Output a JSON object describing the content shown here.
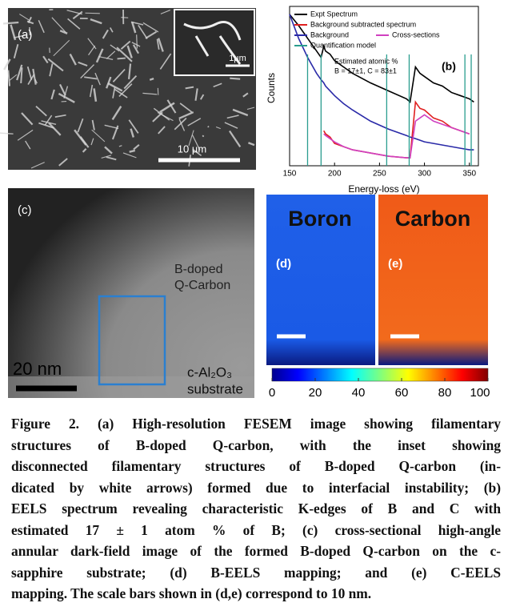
{
  "panel_a": {
    "label": "(a)",
    "inset_scale": "1µm",
    "scale": "10 µm"
  },
  "chart_data": {
    "type": "line",
    "label": "(b)",
    "x_label": "Energy-loss (eV)",
    "y_label": "Counts",
    "annotations": [
      "Estimated atomic %",
      "B = 17±1, C = 83±1"
    ],
    "x": [
      150,
      160,
      170,
      180,
      185,
      188,
      190,
      195,
      200,
      210,
      220,
      240,
      260,
      280,
      284,
      290,
      295,
      300,
      310,
      320,
      330,
      340,
      350,
      355
    ],
    "series": [
      {
        "name": "Expt Spectrum",
        "color": "#000000",
        "values": [
          95,
          88,
          80,
          72,
          68,
          75,
          72,
          70,
          66,
          62,
          58,
          52,
          47,
          42,
          40,
          62,
          58,
          56,
          52,
          50,
          46,
          44,
          42,
          40
        ]
      },
      {
        "name": "Background subtracted spectrum",
        "color": "#e02020",
        "values": [
          null,
          null,
          null,
          null,
          null,
          22,
          20,
          18,
          14,
          12,
          10,
          8,
          6,
          5,
          5,
          40,
          36,
          35,
          30,
          28,
          24,
          22,
          20,
          null
        ]
      },
      {
        "name": "Background",
        "color": "#2a2aa8",
        "values": [
          95,
          80,
          68,
          58,
          54,
          52,
          50,
          47,
          44,
          39,
          35,
          28,
          23,
          19,
          18,
          17,
          16,
          15,
          14,
          13,
          12,
          11,
          10,
          10
        ]
      },
      {
        "name": "Cross-sections",
        "color": "#d040c0",
        "values": [
          null,
          null,
          null,
          null,
          null,
          20,
          19,
          17,
          15,
          12,
          10,
          8,
          6,
          5,
          5,
          28,
          30,
          32,
          28,
          26,
          24,
          22,
          20,
          null
        ]
      },
      {
        "name": "Quantification model",
        "color": "#2a9d8f",
        "windows": [
          170,
          185,
          258,
          283,
          345,
          352
        ]
      }
    ],
    "xlim": [
      150,
      360
    ],
    "ylim": [
      0,
      100
    ],
    "xticks": [
      150,
      200,
      250,
      300,
      350
    ]
  },
  "panel_c": {
    "label": "(c)",
    "material": [
      "B-doped",
      "Q-Carbon"
    ],
    "scale": "20 nm",
    "substrate": [
      "c-Al₂O₃",
      "substrate"
    ]
  },
  "panel_d": {
    "element": "Boron",
    "label": "(d)"
  },
  "panel_e": {
    "element": "Carbon",
    "label": "(e)"
  },
  "colorbar": {
    "lim": [
      0,
      100
    ],
    "ticks": [
      0,
      20,
      40,
      60,
      80,
      100
    ]
  },
  "caption": [
    "Figure 2. (a) High-resolution FESEM image showing filamentary",
    "structures of B-doped Q-carbon, with the inset showing",
    "disconnected filamentary structures of B-doped Q-carbon (in-",
    "dicated by white arrows) formed due to interfacial instability; (b)",
    "EELS spectrum revealing characteristic K-edges of B and C with",
    "estimated 17 ± 1 atom % of B; (c) cross-sectional high-angle",
    "annular dark-field image of the formed B-doped Q-carbon on the c-",
    "sapphire substrate; (d) B-EELS mapping; and (e) C-EELS",
    "mapping. The scale bars shown in (d,e) correspond to 10 nm."
  ]
}
